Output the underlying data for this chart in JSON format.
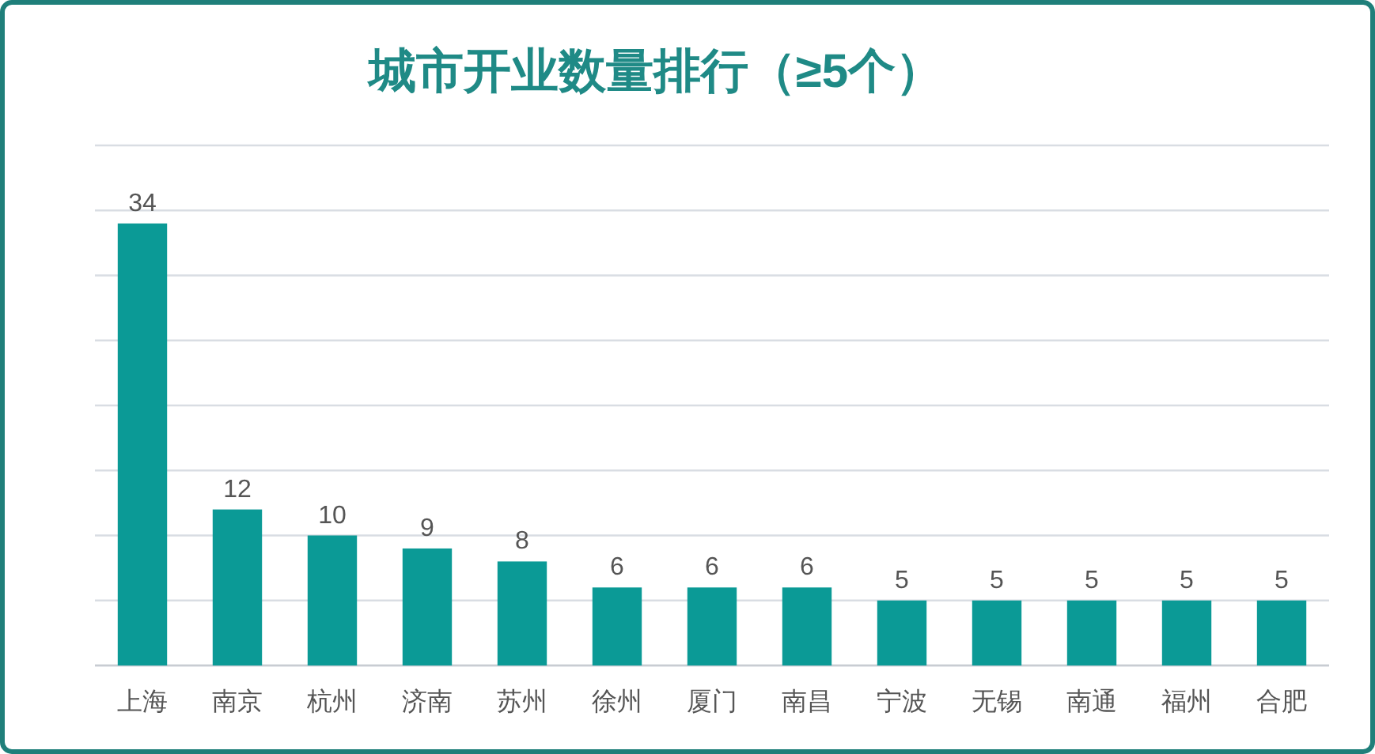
{
  "chart_data": {
    "type": "bar",
    "title": "城市开业数量排行（≥5个）",
    "categories": [
      "上海",
      "南京",
      "杭州",
      "济南",
      "苏州",
      "徐州",
      "厦门",
      "南昌",
      "宁波",
      "无锡",
      "南通",
      "福州",
      "合肥"
    ],
    "values": [
      34,
      12,
      10,
      9,
      8,
      6,
      6,
      6,
      5,
      5,
      5,
      5,
      5
    ],
    "color": "#0b9a96",
    "ylim": [
      0,
      40
    ],
    "yticks": [
      {
        "value": 0,
        "label": null
      },
      {
        "value": 5,
        "label": null
      },
      {
        "value": 10,
        "label": null
      },
      {
        "value": 15,
        "label": null
      },
      {
        "value": 20,
        "label": null
      },
      {
        "value": 25,
        "label": null
      },
      {
        "value": 30,
        "label": null
      },
      {
        "value": 35,
        "label": null
      },
      {
        "value": 40,
        "label": null
      }
    ],
    "tick_labels": "x",
    "grid": "y",
    "data_labels": true
  }
}
